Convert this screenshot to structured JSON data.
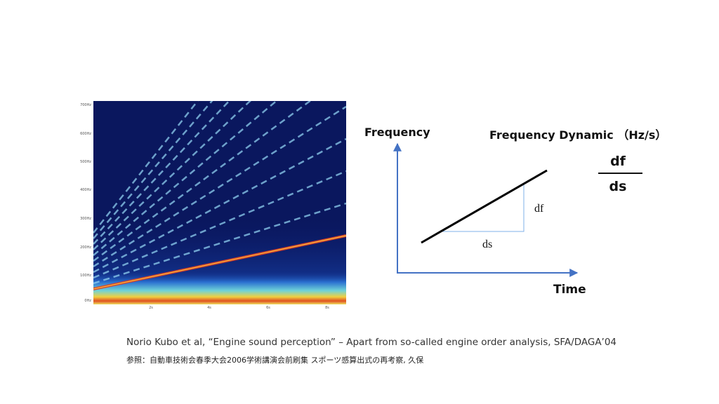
{
  "spectrogram": {
    "y_labels": [
      "700Hz",
      "600Hz",
      "500Hz",
      "400Hz",
      "300Hz",
      "200Hz",
      "100Hz",
      "0Hz"
    ],
    "x_labels": [
      "2s",
      "4s",
      "6s",
      "8s"
    ]
  },
  "diagram": {
    "y_axis_label": "Frequency",
    "x_axis_label": "Time",
    "title": "Frequency Dynamic （Hz/s）",
    "df": "df",
    "ds": "ds",
    "fraction": {
      "numerator": "df",
      "denominator": "ds"
    }
  },
  "citation": [
    "Norio Kubo et al, “Engine sound perception” – Apart from so-called engine order analysis, SFA/DAGA’04",
    "参照：自動車技術会春季大会2006学術講演会前刷集 スポーツ感算出式の再考察, 久保"
  ]
}
